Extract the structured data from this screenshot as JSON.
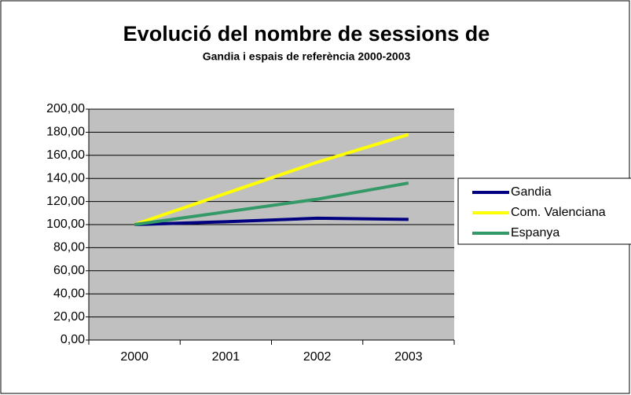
{
  "chart_data": {
    "type": "line",
    "title": "Evolució del nombre de sessions de",
    "subtitle": "Gandia i espais de referència 2000-2003",
    "categories": [
      "2000",
      "2001",
      "2002",
      "2003"
    ],
    "series": [
      {
        "name": "Gandia",
        "color": "#000080",
        "values": [
          100,
          102.5,
          105.5,
          104.5
        ]
      },
      {
        "name": "Com. Valenciana",
        "color": "#ffff00",
        "values": [
          100,
          127,
          154,
          178
        ]
      },
      {
        "name": "Espanya",
        "color": "#339966",
        "values": [
          100,
          111,
          122,
          136
        ]
      }
    ],
    "ylim": [
      0,
      200
    ],
    "yticks": [
      {
        "value": 0,
        "label": "0,00"
      },
      {
        "value": 20,
        "label": "20,00"
      },
      {
        "value": 40,
        "label": "40,00"
      },
      {
        "value": 60,
        "label": "60,00"
      },
      {
        "value": 80,
        "label": "80,00"
      },
      {
        "value": 100,
        "label": "100,00"
      },
      {
        "value": 120,
        "label": "120,00"
      },
      {
        "value": 140,
        "label": "140,00"
      },
      {
        "value": 160,
        "label": "160,00"
      },
      {
        "value": 180,
        "label": "180,00"
      },
      {
        "value": 200,
        "label": "200,00"
      }
    ],
    "grid": true,
    "legend": "right"
  }
}
